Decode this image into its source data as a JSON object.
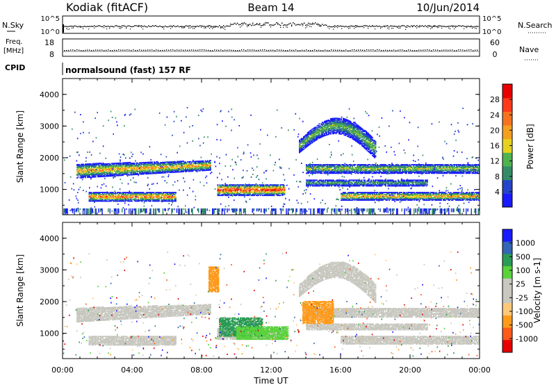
{
  "header": {
    "station": "Kodiak (fitACF)",
    "beam": "Beam 14",
    "date": "10/Jun/2014"
  },
  "strips": {
    "nsky_label": "N.Sky",
    "nsky_top": "10^5",
    "nsky_bottom": "10^0",
    "nsearch_label": "N.Search",
    "nsearch_top": "10^5",
    "nsearch_bottom": "10^0",
    "freq_label": "Freq.",
    "freq_unit": "[MHz]",
    "freq_top": "18",
    "freq_bottom": "8",
    "nave_label": "Nave",
    "nave_top": "60",
    "nave_bottom": "0",
    "cpid_label": "CPID",
    "cpid_text": "normalsound (fast) 157 RF"
  },
  "colors": {
    "power": [
      "#1a1aff",
      "#2545c8",
      "#338c66",
      "#4fb24f",
      "#e6d21e",
      "#f59f1e",
      "#f5731e",
      "#ff3a1a",
      "#e60000"
    ],
    "velocity": [
      "#e60000",
      "#ff5a1a",
      "#ff9a1a",
      "#ffc878",
      "#c8c8c0",
      "#c8c8c0",
      "#5ad23c",
      "#2a9b55",
      "#3366b4",
      "#1a1aff"
    ]
  },
  "chart_data": [
    {
      "type": "heatmap",
      "quantity": "power",
      "xlabel": "",
      "ylabel": "Slant Range [km]",
      "xlim": [
        0,
        24
      ],
      "ylim": [
        200,
        4500
      ],
      "yticks": [
        "1000",
        "2000",
        "3000",
        "4000"
      ],
      "colorbar": {
        "label": "Power [dB]",
        "ticks": [
          "4",
          "8",
          "12",
          "16",
          "20",
          "24",
          "28"
        ],
        "range": [
          0,
          32
        ]
      },
      "bands": [
        {
          "name": "lower-band-1",
          "t0": 1.5,
          "t1": 6.5,
          "r0": 620,
          "r1": 900,
          "peak": 26
        },
        {
          "name": "upper-band-1",
          "t0": 0.8,
          "t1": 8.5,
          "r0": 1350,
          "r1": 1800,
          "peak": 22
        },
        {
          "name": "intense-patch",
          "t0": 8.9,
          "t1": 12.8,
          "r0": 800,
          "r1": 1150,
          "peak": 30
        },
        {
          "name": "arc",
          "t0": 13.6,
          "t1": 18.0,
          "r0": 1400,
          "r1": 3100,
          "peak": 14
        },
        {
          "name": "upper-band-2",
          "t0": 14.0,
          "t1": 24.0,
          "r0": 1500,
          "r1": 1800,
          "peak": 16
        },
        {
          "name": "lower-band-2",
          "t0": 16.0,
          "t1": 24.0,
          "r0": 650,
          "r1": 900,
          "peak": 22
        },
        {
          "name": "middle-band",
          "t0": 14.0,
          "t1": 21.0,
          "r0": 1100,
          "r1": 1300,
          "peak": 12
        }
      ]
    },
    {
      "type": "heatmap",
      "quantity": "velocity",
      "xlabel": "Time UT",
      "ylabel": "Slant Range [km]",
      "xlim": [
        0,
        24
      ],
      "ylim": [
        200,
        4500
      ],
      "xticks": [
        "00:00",
        "04:00",
        "08:00",
        "12:00",
        "16:00",
        "20:00",
        "00:00"
      ],
      "yticks": [
        "1000",
        "2000",
        "3000",
        "4000"
      ],
      "colorbar": {
        "label": "Velocity [m s-1]",
        "ticks": [
          "1000",
          "500",
          "100",
          "25",
          "-25",
          "-100",
          "-500",
          "-1000"
        ]
      },
      "patches": [
        {
          "name": "green-patch",
          "t0": 9.0,
          "t1": 11.5,
          "r0": 900,
          "r1": 1500,
          "velocity": 200
        },
        {
          "name": "light-green-patch",
          "t0": 10.0,
          "t1": 13.0,
          "r0": 800,
          "r1": 1200,
          "velocity": 60
        },
        {
          "name": "orange-patch",
          "t0": 13.8,
          "t1": 15.6,
          "r0": 1300,
          "r1": 2000,
          "velocity": -300
        },
        {
          "name": "orange-streak",
          "t0": 8.4,
          "t1": 9.0,
          "r0": 2300,
          "r1": 3100,
          "velocity": -250
        }
      ]
    }
  ]
}
